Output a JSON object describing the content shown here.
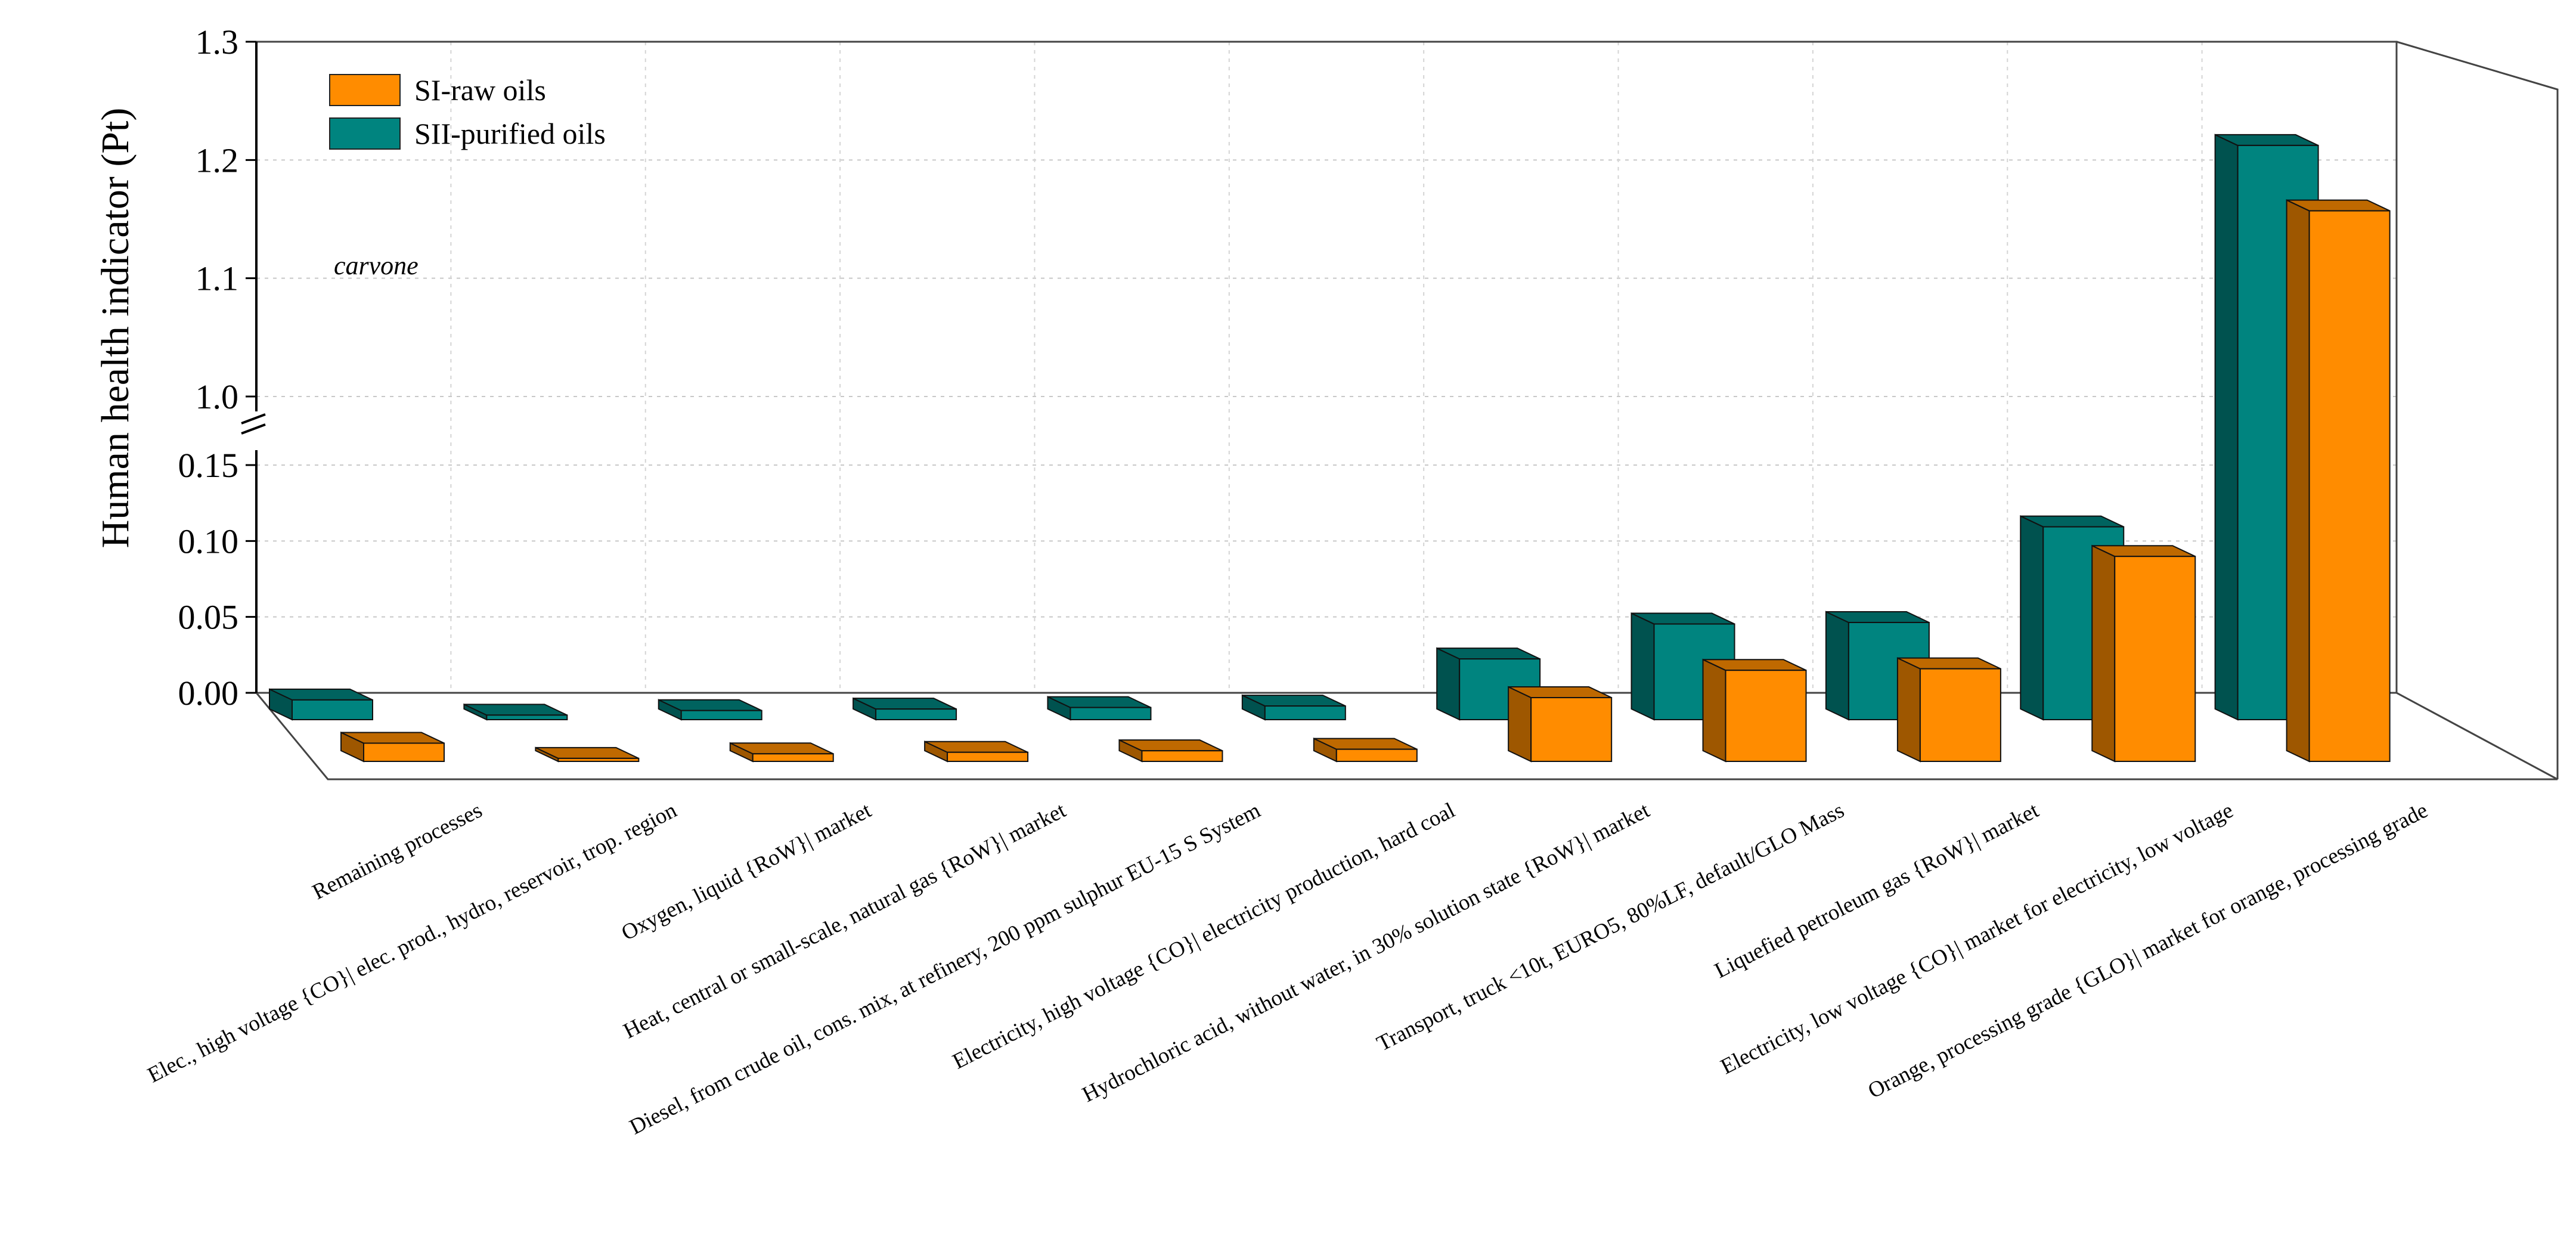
{
  "chart_data": {
    "type": "bar",
    "subtype": "3d-clustered-bar-with-broken-y-axis",
    "ylabel": "Human health indicator (Pt)",
    "annotation": "carvone",
    "y_break": {
      "lower_range": [
        0,
        0.15
      ],
      "upper_range": [
        1.0,
        1.3
      ]
    },
    "yticks_lower": [
      "0.00",
      "0.05",
      "0.10",
      "0.15"
    ],
    "yticks_upper": [
      "1.0",
      "1.1",
      "1.2",
      "1.3"
    ],
    "ytick_values_lower": [
      0,
      0.05,
      0.1,
      0.15
    ],
    "ytick_values_upper": [
      1.0,
      1.1,
      1.2,
      1.3
    ],
    "legend_position": "top-left",
    "grid": true,
    "categories": [
      "Remaining processes",
      "Elec., high voltage {CO}| elec. prod., hydro, reservoir, trop. region",
      "Oxygen, liquid {RoW}| market",
      "Heat, central or small-scale, natural gas {RoW}| market",
      "Diesel, from crude oil, cons. mix, at refinery, 200 ppm sulphur EU-15 S System",
      "Electricity, high voltage {CO}| electricity production, hard coal",
      "Hydrochloric acid, without water, in 30% solution state {RoW}| market",
      "Transport, truck <10t, EURO5, 80%LF, default/GLO Mass",
      "Liquefied petroleum gas {RoW}| market",
      "Electricity, low voltage {CO}| market for electricity, low voltage",
      "Orange, processing grade {GLO}| market for orange, processing grade"
    ],
    "series": [
      {
        "name": "SI-raw oils",
        "color": "#ff8c00",
        "values": [
          0.012,
          0.002,
          0.005,
          0.006,
          0.007,
          0.008,
          0.042,
          0.06,
          0.061,
          0.135,
          1.215
        ]
      },
      {
        "name": "SII-purified oils",
        "color": "#00847f",
        "values": [
          0.013,
          0.003,
          0.006,
          0.007,
          0.008,
          0.009,
          0.04,
          0.063,
          0.064,
          0.127,
          1.235
        ]
      }
    ]
  }
}
